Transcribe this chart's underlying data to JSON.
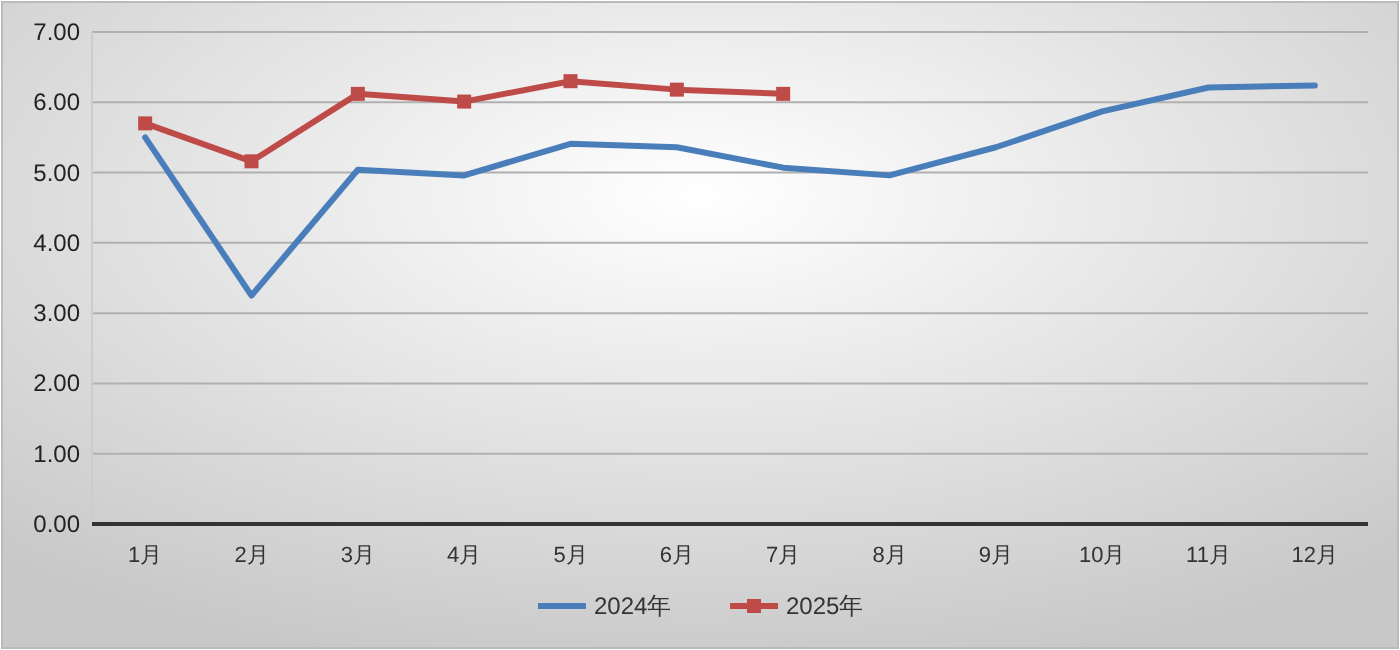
{
  "chart_data": {
    "type": "line",
    "categories": [
      "1月",
      "2月",
      "3月",
      "4月",
      "5月",
      "6月",
      "7月",
      "8月",
      "9月",
      "10月",
      "11月",
      "12月"
    ],
    "series": [
      {
        "name": "2024年",
        "color": "#4a7ebb",
        "marker": "none",
        "values": [
          5.5,
          3.25,
          5.04,
          4.96,
          5.41,
          5.36,
          5.07,
          4.96,
          5.36,
          5.87,
          6.21,
          6.24
        ]
      },
      {
        "name": "2025年",
        "color": "#be4b48",
        "marker": "square",
        "values": [
          5.7,
          5.16,
          6.12,
          6.01,
          6.3,
          6.18,
          6.12,
          null,
          null,
          null,
          null,
          null
        ]
      }
    ],
    "ylim": [
      0,
      7
    ],
    "yticks": [
      {
        "value": 0,
        "label": "0.00"
      },
      {
        "value": 1,
        "label": "1.00"
      },
      {
        "value": 2,
        "label": "2.00"
      },
      {
        "value": 3,
        "label": "3.00"
      },
      {
        "value": 4,
        "label": "4.00"
      },
      {
        "value": 5,
        "label": "5.00"
      },
      {
        "value": 6,
        "label": "6.00"
      },
      {
        "value": 7,
        "label": "7.00"
      }
    ],
    "grid": "y",
    "legend": "bottom"
  }
}
